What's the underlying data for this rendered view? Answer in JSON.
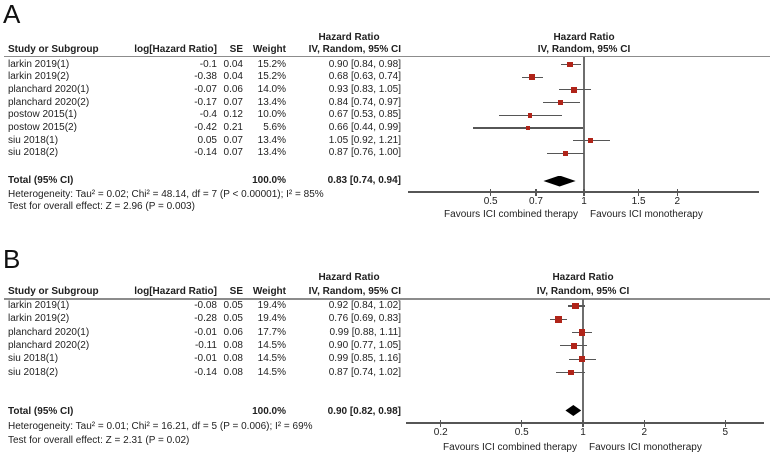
{
  "colors": {
    "marker_red": "#b02419",
    "line_gray": "#565656",
    "null_line_gray": "#6e6e6e",
    "header_rule_gray": "#8c8c8c",
    "diamond_black": "#000000",
    "text": "#1f1f1f"
  },
  "chart_data": [
    {
      "type": "forest",
      "panel_label": "A",
      "x_scale": "log",
      "column_headers": {
        "study": "Study or Subgroup",
        "loghr": "log[Hazard Ratio]",
        "se": "SE",
        "weight": "Weight",
        "effect_title": "Hazard Ratio",
        "effect_method": "IV, Random, 95% CI"
      },
      "plot_header": {
        "line1": "Hazard Ratio",
        "line2": "IV, Random, 95% CI"
      },
      "studies": [
        {
          "name": "larkin 2019(1)",
          "log_hr": "-0.1",
          "se": "0.04",
          "weight": "15.2%",
          "weight_pct": 15.2,
          "hr": 0.9,
          "ci_low": 0.84,
          "ci_high": 0.98,
          "ci_text": "0.90 [0.84, 0.98]"
        },
        {
          "name": "larkin 2019(2)",
          "log_hr": "-0.38",
          "se": "0.04",
          "weight": "15.2%",
          "weight_pct": 15.2,
          "hr": 0.68,
          "ci_low": 0.63,
          "ci_high": 0.74,
          "ci_text": "0.68 [0.63, 0.74]"
        },
        {
          "name": "planchard 2020(1)",
          "log_hr": "-0.07",
          "se": "0.06",
          "weight": "14.0%",
          "weight_pct": 14.0,
          "hr": 0.93,
          "ci_low": 0.83,
          "ci_high": 1.05,
          "ci_text": "0.93 [0.83, 1.05]"
        },
        {
          "name": "planchard 2020(2)",
          "log_hr": "-0.17",
          "se": "0.07",
          "weight": "13.4%",
          "weight_pct": 13.4,
          "hr": 0.84,
          "ci_low": 0.74,
          "ci_high": 0.97,
          "ci_text": "0.84 [0.74, 0.97]"
        },
        {
          "name": "postow 2015(1)",
          "log_hr": "-0.4",
          "se": "0.12",
          "weight": "10.0%",
          "weight_pct": 10.0,
          "hr": 0.67,
          "ci_low": 0.53,
          "ci_high": 0.85,
          "ci_text": "0.67 [0.53, 0.85]"
        },
        {
          "name": "postow 2015(2)",
          "log_hr": "-0.42",
          "se": "0.21",
          "weight": "5.6%",
          "weight_pct": 5.6,
          "hr": 0.66,
          "ci_low": 0.44,
          "ci_high": 0.99,
          "ci_text": "0.66 [0.44, 0.99]"
        },
        {
          "name": "siu 2018(1)",
          "log_hr": "0.05",
          "se": "0.07",
          "weight": "13.4%",
          "weight_pct": 13.4,
          "hr": 1.05,
          "ci_low": 0.92,
          "ci_high": 1.21,
          "ci_text": "1.05 [0.92, 1.21]"
        },
        {
          "name": "siu 2018(2)",
          "log_hr": "-0.14",
          "se": "0.07",
          "weight": "13.4%",
          "weight_pct": 13.4,
          "hr": 0.87,
          "ci_low": 0.76,
          "ci_high": 1.0,
          "ci_text": "0.87 [0.76, 1.00]"
        }
      ],
      "total": {
        "label": "Total (95% CI)",
        "weight": "100.0%",
        "hr": 0.83,
        "ci_low": 0.74,
        "ci_high": 0.94,
        "ci_text": "0.83 [0.74, 0.94]"
      },
      "heterogeneity": "Heterogeneity: Tau² = 0.02; Chi² = 48.14, df = 7 (P < 0.00001); I² = 85%",
      "overall_effect": "Test for overall effect: Z = 2.96 (P = 0.003)",
      "x_ticks": [
        "0.5",
        "0.7",
        "1",
        "1.5",
        "2"
      ],
      "footer_left": "Favours ICI combined therapy",
      "footer_right": "Favours ICI monotherapy"
    },
    {
      "type": "forest",
      "panel_label": "B",
      "x_scale": "log",
      "column_headers": {
        "study": "Study or Subgroup",
        "loghr": "log[Hazard Ratio]",
        "se": "SE",
        "weight": "Weight",
        "effect_title": "Hazard Ratio",
        "effect_method": "IV, Random, 95% CI"
      },
      "plot_header": {
        "line1": "Hazard Ratio",
        "line2": "IV, Random, 95% CI"
      },
      "studies": [
        {
          "name": "larkin 2019(1)",
          "log_hr": "-0.08",
          "se": "0.05",
          "weight": "19.4%",
          "weight_pct": 19.4,
          "hr": 0.92,
          "ci_low": 0.84,
          "ci_high": 1.02,
          "ci_text": "0.92 [0.84, 1.02]"
        },
        {
          "name": "larkin 2019(2)",
          "log_hr": "-0.28",
          "se": "0.05",
          "weight": "19.4%",
          "weight_pct": 19.4,
          "hr": 0.76,
          "ci_low": 0.69,
          "ci_high": 0.83,
          "ci_text": "0.76 [0.69, 0.83]"
        },
        {
          "name": "planchard 2020(1)",
          "log_hr": "-0.01",
          "se": "0.06",
          "weight": "17.7%",
          "weight_pct": 17.7,
          "hr": 0.99,
          "ci_low": 0.88,
          "ci_high": 1.11,
          "ci_text": "0.99 [0.88, 1.11]"
        },
        {
          "name": "planchard 2020(2)",
          "log_hr": "-0.11",
          "se": "0.08",
          "weight": "14.5%",
          "weight_pct": 14.5,
          "hr": 0.9,
          "ci_low": 0.77,
          "ci_high": 1.05,
          "ci_text": "0.90 [0.77, 1.05]"
        },
        {
          "name": "siu 2018(1)",
          "log_hr": "-0.01",
          "se": "0.08",
          "weight": "14.5%",
          "weight_pct": 14.5,
          "hr": 0.99,
          "ci_low": 0.85,
          "ci_high": 1.16,
          "ci_text": "0.99 [0.85, 1.16]"
        },
        {
          "name": "siu 2018(2)",
          "log_hr": "-0.14",
          "se": "0.08",
          "weight": "14.5%",
          "weight_pct": 14.5,
          "hr": 0.87,
          "ci_low": 0.74,
          "ci_high": 1.02,
          "ci_text": "0.87 [0.74, 1.02]"
        }
      ],
      "total": {
        "label": "Total (95% CI)",
        "weight": "100.0%",
        "hr": 0.9,
        "ci_low": 0.82,
        "ci_high": 0.98,
        "ci_text": "0.90 [0.82, 0.98]"
      },
      "heterogeneity": "Heterogeneity: Tau² = 0.01; Chi² = 16.21, df = 5 (P = 0.006); I² = 69%",
      "overall_effect": "Test for overall effect: Z = 2.31 (P = 0.02)",
      "x_ticks": [
        "0.2",
        "0.5",
        "1",
        "2",
        "5"
      ],
      "footer_left": "Favours ICI combined therapy",
      "footer_right": "Favours ICI monotherapy"
    }
  ]
}
